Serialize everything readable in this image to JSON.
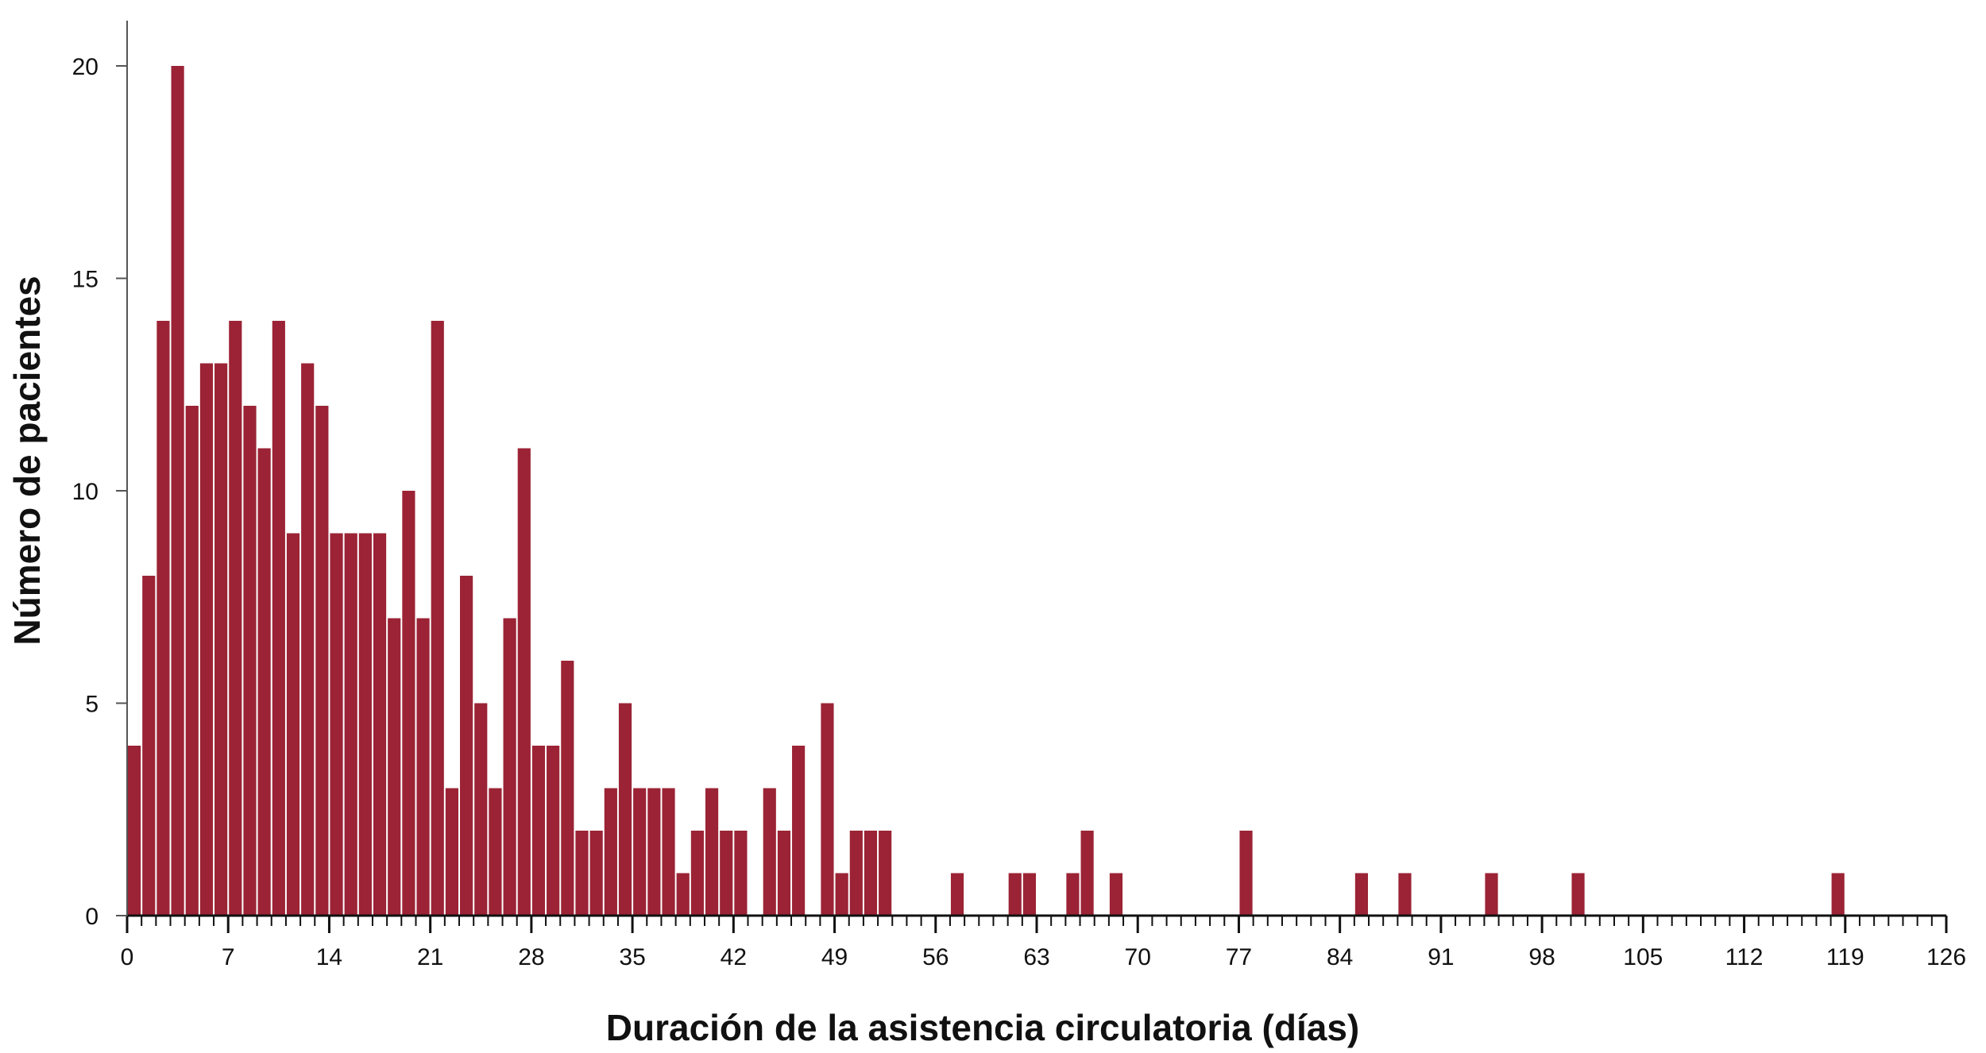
{
  "chart_data": {
    "type": "bar",
    "title": "",
    "xlabel": "Duración de la asistencia circulatoria (días)",
    "ylabel": "Número de pacientes",
    "xlim": [
      0,
      126
    ],
    "ylim": [
      0,
      20
    ],
    "x_ticks": [
      0,
      7,
      14,
      21,
      28,
      35,
      42,
      49,
      56,
      63,
      70,
      77,
      84,
      91,
      98,
      105,
      112,
      119,
      126
    ],
    "y_ticks": [
      0,
      5,
      10,
      15,
      20
    ],
    "minor_tick_step": 1,
    "grid": false,
    "bar_color": "#9b2335",
    "x": [
      0,
      1,
      2,
      3,
      4,
      5,
      6,
      7,
      8,
      9,
      10,
      11,
      12,
      13,
      14,
      15,
      16,
      17,
      18,
      19,
      20,
      21,
      22,
      23,
      24,
      25,
      26,
      27,
      28,
      29,
      30,
      31,
      32,
      33,
      34,
      35,
      36,
      37,
      38,
      39,
      40,
      41,
      42,
      44,
      45,
      46,
      48,
      49,
      50,
      51,
      52,
      57,
      61,
      62,
      65,
      66,
      68,
      77,
      85,
      88,
      94,
      100,
      118
    ],
    "values": [
      4,
      8,
      14,
      20,
      12,
      13,
      13,
      14,
      12,
      11,
      14,
      9,
      13,
      12,
      9,
      9,
      9,
      9,
      7,
      10,
      7,
      14,
      3,
      8,
      5,
      3,
      7,
      11,
      4,
      4,
      6,
      2,
      2,
      3,
      5,
      3,
      3,
      3,
      1,
      2,
      3,
      2,
      2,
      3,
      2,
      4,
      5,
      1,
      2,
      2,
      2,
      1,
      1,
      1,
      1,
      2,
      1,
      2,
      1,
      1,
      1,
      1,
      1
    ]
  }
}
